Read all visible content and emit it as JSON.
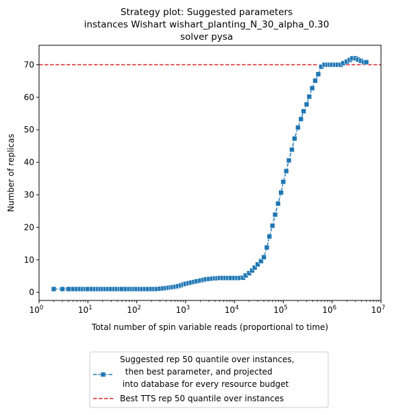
{
  "chart_data": {
    "type": "line",
    "title_lines": [
      "Strategy plot: Suggested parameters",
      "instances Wishart wishart_planting_N_30_alpha_0.30",
      "solver pysa"
    ],
    "xlabel": "Total number of spin variable reads (proportional to time)",
    "ylabel": "Number of replicas",
    "xscale": "log",
    "xlim": [
      1,
      10000000
    ],
    "ylim": [
      -2.5,
      76
    ],
    "x_ticks": [
      {
        "value": 1,
        "base": "10",
        "exp": "0"
      },
      {
        "value": 10,
        "base": "10",
        "exp": "1"
      },
      {
        "value": 100,
        "base": "10",
        "exp": "2"
      },
      {
        "value": 1000,
        "base": "10",
        "exp": "3"
      },
      {
        "value": 10000,
        "base": "10",
        "exp": "4"
      },
      {
        "value": 100000,
        "base": "10",
        "exp": "5"
      },
      {
        "value": 1000000,
        "base": "10",
        "exp": "6"
      },
      {
        "value": 10000000,
        "base": "10",
        "exp": "7"
      }
    ],
    "y_ticks": [
      0,
      10,
      20,
      30,
      40,
      50,
      60,
      70
    ],
    "grid": false,
    "legend_position": "below",
    "legend": {
      "series_label_lines": [
        "Suggested rep 50 quantile over instances,",
        "  then best parameter, and projected",
        " into database for every resource budget"
      ],
      "reference_label": "Best TTS rep 50 quantile over instances"
    },
    "series": [
      {
        "color": "#1f77b4",
        "marker": "square",
        "x": [
          2,
          3,
          4,
          5,
          6,
          7,
          8,
          9,
          10,
          12,
          14,
          16,
          18,
          20,
          23,
          26,
          30,
          35,
          40,
          45,
          50,
          60,
          70,
          80,
          90,
          100,
          115,
          130,
          150,
          170,
          200,
          230,
          260,
          300,
          350,
          400,
          450,
          500,
          550,
          620,
          700,
          800,
          900,
          1000,
          1150,
          1300,
          1500,
          1700,
          2000,
          2300,
          2600,
          3000,
          3500,
          4000,
          4500,
          5000,
          5700,
          6500,
          7500,
          8500,
          10000,
          11500,
          13000,
          15000,
          17000,
          20000,
          23000,
          26000,
          30000,
          35000,
          40000,
          46000,
          52000,
          60000,
          68000,
          78000,
          90000,
          100000,
          115000,
          130000,
          150000,
          170000,
          200000,
          230000,
          260000,
          300000,
          340000,
          390000,
          450000,
          520000,
          600000,
          700000,
          800000,
          900000,
          1000000,
          1150000,
          1300000,
          1500000,
          1700000,
          2000000,
          2300000,
          2600000,
          3000000,
          3400000,
          3900000,
          4500000,
          5000000
        ],
        "y": [
          1,
          1,
          1,
          1,
          1,
          1,
          1,
          1,
          1,
          1,
          1,
          1,
          1,
          1,
          1,
          1,
          1,
          1,
          1,
          1,
          1,
          1,
          1,
          1,
          1,
          1,
          1,
          1,
          1,
          1,
          1,
          1,
          1,
          1.1,
          1.2,
          1.3,
          1.4,
          1.5,
          1.6,
          1.7,
          1.9,
          2.1,
          2.4,
          2.6,
          2.8,
          3.0,
          3.2,
          3.4,
          3.6,
          3.8,
          4.0,
          4.1,
          4.2,
          4.3,
          4.3,
          4.4,
          4.4,
          4.4,
          4.4,
          4.4,
          4.4,
          4.4,
          4.4,
          4.5,
          5.2,
          5.9,
          6.7,
          7.6,
          8.6,
          9.6,
          10.8,
          13.8,
          17.2,
          20.5,
          23.9,
          27.3,
          30.7,
          34.0,
          37.3,
          40.6,
          43.9,
          47.3,
          50.7,
          53.3,
          55.7,
          57.8,
          60.2,
          62.8,
          65.1,
          67.1,
          69.4,
          70,
          70,
          70,
          70,
          70,
          70,
          70,
          70.5,
          71.0,
          71.5,
          72.0,
          72.0,
          71.6,
          71.2,
          70.8,
          70.8
        ]
      }
    ],
    "reference_lines": [
      {
        "y": 70,
        "color": "#d62728",
        "style": "dashed"
      }
    ]
  }
}
